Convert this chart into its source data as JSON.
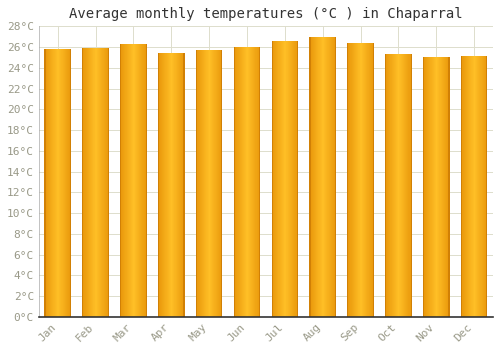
{
  "title": "Average monthly temperatures (°C ) in Chaparral",
  "months": [
    "Jan",
    "Feb",
    "Mar",
    "Apr",
    "May",
    "Jun",
    "Jul",
    "Aug",
    "Sep",
    "Oct",
    "Nov",
    "Dec"
  ],
  "values": [
    25.8,
    25.9,
    26.3,
    25.4,
    25.7,
    26.0,
    26.6,
    27.0,
    26.4,
    25.3,
    25.0,
    25.1
  ],
  "bar_color_center": "#FFB733",
  "bar_color_edge": "#E8950A",
  "background_color": "#FFFFFF",
  "plot_bg_color": "#FFFFFF",
  "grid_color": "#DDDDCC",
  "ylim": [
    0,
    28
  ],
  "ytick_step": 2,
  "title_fontsize": 10,
  "tick_fontsize": 8,
  "font_family": "monospace",
  "tick_color": "#999988"
}
